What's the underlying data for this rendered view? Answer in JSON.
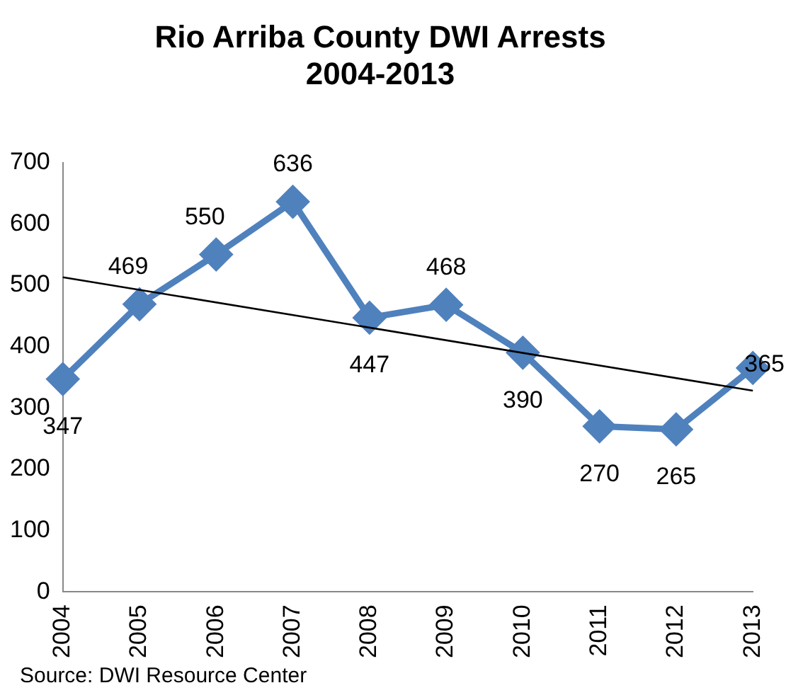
{
  "chart_data": {
    "type": "line",
    "title": "Rio Arriba County DWI Arrests\n2004-2013",
    "categories": [
      "2004",
      "2005",
      "2006",
      "2007",
      "2008",
      "2009",
      "2010",
      "2011",
      "2012",
      "2013"
    ],
    "series": [
      {
        "color": "#4f81bd",
        "values": [
          347,
          469,
          550,
          636,
          447,
          468,
          390,
          270,
          265,
          365
        ],
        "marker": "diamond",
        "value_labels": [
          "347",
          "469",
          "550",
          "636",
          "447",
          "468",
          "390",
          "270",
          "265",
          "365"
        ]
      },
      {
        "type": "line",
        "color": "#000000",
        "values": [
          513,
          null,
          null,
          null,
          null,
          null,
          null,
          null,
          null,
          328
        ],
        "marker": "none"
      }
    ],
    "ylim": [
      0,
      700
    ],
    "yticks": [
      0,
      100,
      200,
      300,
      400,
      500,
      600,
      700
    ],
    "grid": false,
    "legend": false,
    "annotations": [
      "Source: DWI Resource Center"
    ]
  }
}
